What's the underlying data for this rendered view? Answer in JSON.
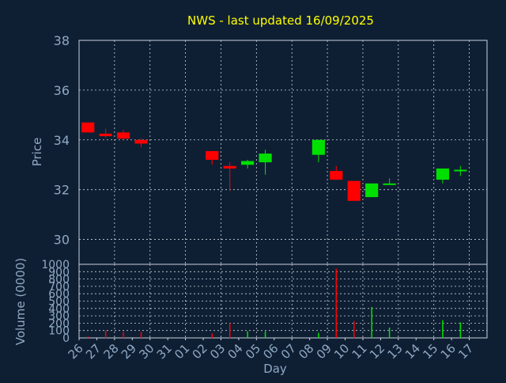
{
  "title": "NWS - last updated 16/09/2025",
  "colors": {
    "background": "#0f1f33",
    "title": "#ffff00",
    "axis_text": "#8fa9c4",
    "grid": "#c8d2dc",
    "up": "#00e000",
    "down": "#ff0000"
  },
  "chart_data": [
    {
      "type": "candlestick",
      "ylabel": "Price",
      "ylim": [
        29,
        38
      ],
      "yticks": [
        30,
        32,
        34,
        36,
        38
      ],
      "grid": true,
      "categories": [
        "26",
        "27",
        "28",
        "29",
        "30",
        "31",
        "01",
        "02",
        "03",
        "04",
        "05",
        "06",
        "07",
        "08",
        "09",
        "10",
        "11",
        "12",
        "13",
        "14",
        "15",
        "16",
        "17"
      ],
      "candles": [
        {
          "day": "26",
          "open": 34.7,
          "high": 34.7,
          "low": 34.3,
          "close": 34.3
        },
        {
          "day": "27",
          "open": 34.25,
          "high": 34.45,
          "low": 34.1,
          "close": 34.15
        },
        {
          "day": "28",
          "open": 34.3,
          "high": 34.4,
          "low": 34.0,
          "close": 34.05
        },
        {
          "day": "29",
          "open": 34.0,
          "high": 34.05,
          "low": 33.7,
          "close": 33.85
        },
        {
          "day": "02",
          "open": 33.55,
          "high": 33.55,
          "low": 33.0,
          "close": 33.2
        },
        {
          "day": "03",
          "open": 32.95,
          "high": 33.1,
          "low": 31.95,
          "close": 32.85
        },
        {
          "day": "04",
          "open": 33.0,
          "high": 33.2,
          "low": 32.85,
          "close": 33.15
        },
        {
          "day": "05",
          "open": 33.1,
          "high": 33.6,
          "low": 32.6,
          "close": 33.45
        },
        {
          "day": "08",
          "open": 33.4,
          "high": 34.0,
          "low": 33.1,
          "close": 34.0
        },
        {
          "day": "09",
          "open": 32.75,
          "high": 32.95,
          "low": 32.4,
          "close": 32.4
        },
        {
          "day": "10",
          "open": 32.35,
          "high": 32.35,
          "low": 31.55,
          "close": 31.55
        },
        {
          "day": "11",
          "open": 31.7,
          "high": 32.25,
          "low": 31.7,
          "close": 32.25
        },
        {
          "day": "12",
          "open": 32.2,
          "high": 32.45,
          "low": 32.2,
          "close": 32.25
        },
        {
          "day": "15",
          "open": 32.4,
          "high": 32.85,
          "low": 32.25,
          "close": 32.85
        },
        {
          "day": "16",
          "open": 32.75,
          "high": 32.95,
          "low": 32.55,
          "close": 32.8
        }
      ]
    },
    {
      "type": "bar",
      "ylabel": "Volume (0000)",
      "xlabel": "Day",
      "ylim": [
        0,
        1000
      ],
      "yticks": [
        0,
        100,
        200,
        300,
        400,
        500,
        600,
        700,
        800,
        900,
        1000
      ],
      "grid": true,
      "categories": [
        "26",
        "27",
        "28",
        "29",
        "30",
        "31",
        "01",
        "02",
        "03",
        "04",
        "05",
        "06",
        "07",
        "08",
        "09",
        "10",
        "11",
        "12",
        "13",
        "14",
        "15",
        "16",
        "17"
      ],
      "values": [
        {
          "day": "26",
          "volume": 20,
          "dir": "down"
        },
        {
          "day": "27",
          "volume": 100,
          "dir": "down"
        },
        {
          "day": "28",
          "volume": 80,
          "dir": "down"
        },
        {
          "day": "29",
          "volume": 80,
          "dir": "down"
        },
        {
          "day": "02",
          "volume": 60,
          "dir": "down"
        },
        {
          "day": "03",
          "volume": 200,
          "dir": "down"
        },
        {
          "day": "04",
          "volume": 90,
          "dir": "up"
        },
        {
          "day": "05",
          "volume": 90,
          "dir": "up"
        },
        {
          "day": "08",
          "volume": 70,
          "dir": "up"
        },
        {
          "day": "09",
          "volume": 940,
          "dir": "down"
        },
        {
          "day": "10",
          "volume": 230,
          "dir": "down"
        },
        {
          "day": "11",
          "volume": 420,
          "dir": "up"
        },
        {
          "day": "12",
          "volume": 140,
          "dir": "up"
        },
        {
          "day": "15",
          "volume": 240,
          "dir": "up"
        },
        {
          "day": "16",
          "volume": 210,
          "dir": "up"
        }
      ]
    }
  ]
}
